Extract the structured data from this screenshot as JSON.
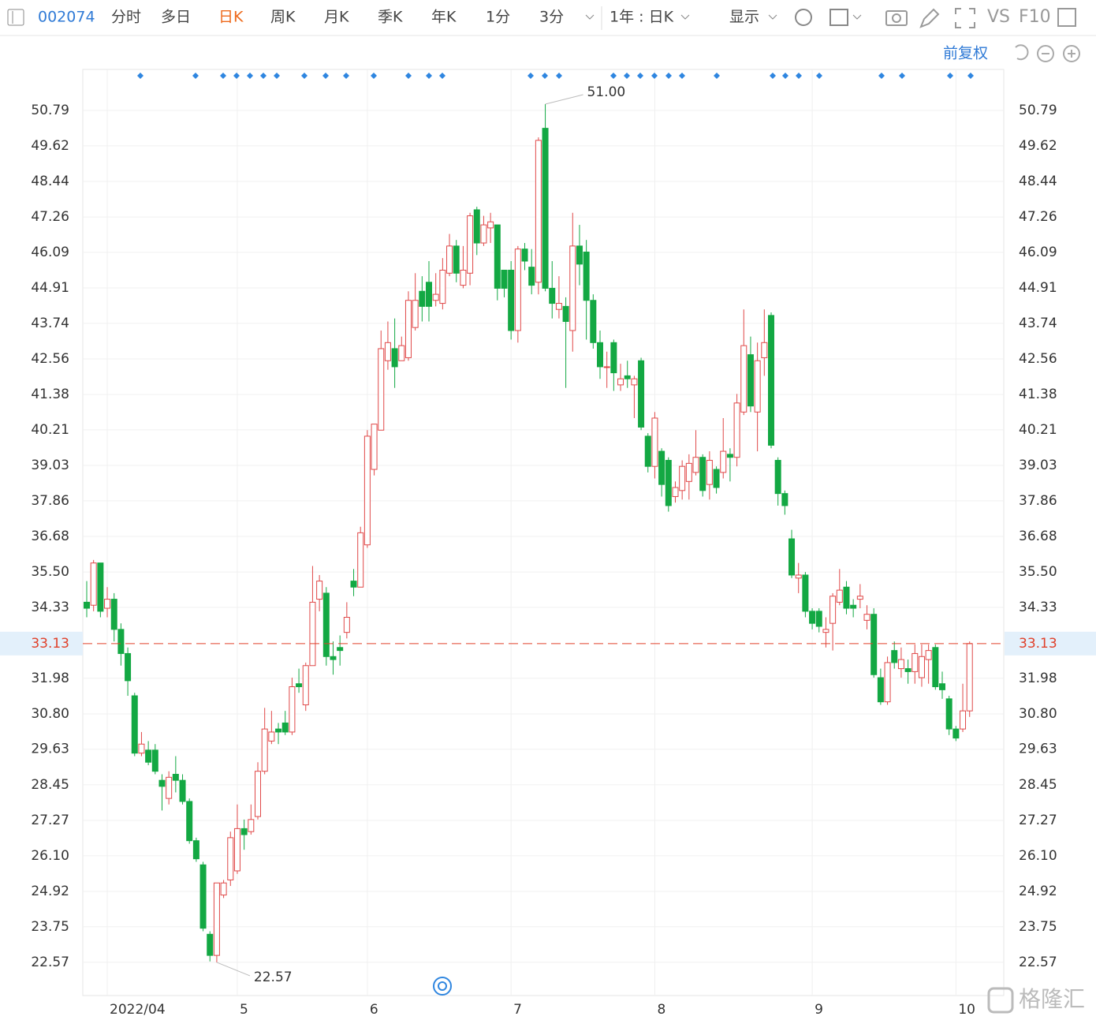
{
  "toolbar": {
    "stock_code": "002074",
    "tabs": [
      "分时",
      "多日",
      "日K",
      "周K",
      "月K",
      "季K",
      "年K",
      "1分",
      "3分"
    ],
    "range": "1年 : 日K",
    "display": "显示",
    "vs": "VS",
    "f10": "F10",
    "adjust": "前复权"
  },
  "watermark": "格隆汇",
  "chart_data": {
    "type": "candlestick",
    "categories": [
      null,
      null,
      null,
      "2022/04",
      null,
      null,
      null,
      null,
      null,
      null,
      null,
      null,
      null,
      null,
      null,
      null,
      null,
      null,
      null,
      null,
      null,
      null,
      "5",
      null,
      null,
      null,
      null,
      null,
      null,
      null,
      null,
      null,
      null,
      null,
      null,
      null,
      null,
      null,
      null,
      null,
      null,
      "6",
      null,
      null,
      null,
      null,
      null,
      null,
      null,
      null,
      null,
      null,
      null,
      null,
      null,
      null,
      null,
      null,
      null,
      null,
      null,
      null,
      "7",
      null,
      null,
      null,
      null,
      null,
      null,
      null,
      null,
      null,
      null,
      null,
      null,
      null,
      null,
      null,
      null,
      null,
      null,
      null,
      null,
      "8",
      null,
      null,
      null,
      null,
      null,
      null,
      null,
      null,
      null,
      null,
      null,
      null,
      null,
      null,
      null,
      null,
      null,
      null,
      null,
      null,
      null,
      null,
      "9",
      null,
      null,
      null,
      null,
      null,
      null,
      null,
      null,
      null,
      null,
      null,
      null,
      null,
      null,
      null,
      null,
      null,
      null,
      null,
      null,
      "10",
      null,
      null
    ],
    "open": [
      34.5,
      34.4,
      35.8,
      34.3,
      34.6,
      33.6,
      32.8,
      31.4,
      29.5,
      29.6,
      29.6,
      28.6,
      28.0,
      28.8,
      28.6,
      27.9,
      26.6,
      25.8,
      23.5,
      22.8,
      24.8,
      25.3,
      25.6,
      27.0,
      26.9,
      27.4,
      28.9,
      29.9,
      30.3,
      30.5,
      30.2,
      31.8,
      31.1,
      32.4,
      34.6,
      34.8,
      32.7,
      33.0,
      33.5,
      35.2,
      35.0,
      36.4,
      38.9,
      40.2,
      42.5,
      42.9,
      42.5,
      42.6,
      43.6,
      44.8,
      45.1,
      44.5,
      44.4,
      45.4,
      46.3,
      45.0,
      45.4,
      47.5,
      46.4,
      46.9,
      47.0,
      45.5,
      45.5,
      43.5,
      46.2,
      45.6,
      45.1,
      50.2,
      44.9,
      44.2,
      44.3,
      43.5,
      46.3,
      46.1,
      44.5,
      43.1,
      42.3,
      43.1,
      41.7,
      42.0,
      41.7,
      42.5,
      40.0,
      39.0,
      39.5,
      39.2,
      38.0,
      38.2,
      38.5,
      38.8,
      39.3,
      38.4,
      38.9,
      38.8,
      39.4,
      39.3,
      40.8,
      42.7,
      40.8,
      42.6,
      44.0,
      39.2,
      38.1,
      36.6,
      35.3,
      35.4,
      34.2,
      34.2,
      33.5,
      33.8,
      34.5,
      35.0,
      34.4,
      34.6,
      33.9,
      34.1,
      32.0,
      31.2,
      32.9,
      32.3,
      32.3,
      32.2,
      32.0,
      32.6,
      33.0,
      31.8,
      31.3,
      30.3,
      30.3,
      30.9
    ],
    "high": [
      35.2,
      35.9,
      35.8,
      35.0,
      34.8,
      33.8,
      33.0,
      31.5,
      30.2,
      29.9,
      29.8,
      28.8,
      28.9,
      29.4,
      28.8,
      28.0,
      26.7,
      25.9,
      23.6,
      25.2,
      25.3,
      26.9,
      27.8,
      27.3,
      27.8,
      29.2,
      31.0,
      30.9,
      30.5,
      30.9,
      32.0,
      32.3,
      32.5,
      35.7,
      35.4,
      35.0,
      33.2,
      33.4,
      34.5,
      35.6,
      37.0,
      40.2,
      40.4,
      43.5,
      43.8,
      43.9,
      43.3,
      44.8,
      45.4,
      45.3,
      45.8,
      45.4,
      45.9,
      46.7,
      46.5,
      46.3,
      47.4,
      47.6,
      47.3,
      47.4,
      47.0,
      45.5,
      45.8,
      46.3,
      46.4,
      46.2,
      49.9,
      51.0,
      45.8,
      45.3,
      44.6,
      47.4,
      47.0,
      46.5,
      44.7,
      43.5,
      42.8,
      43.2,
      42.4,
      42.5,
      42.0,
      42.6,
      40.1,
      40.8,
      39.6,
      39.3,
      38.5,
      39.2,
      39.4,
      40.2,
      39.4,
      39.5,
      39.0,
      40.6,
      39.6,
      41.4,
      44.2,
      43.3,
      43.1,
      44.2,
      44.1,
      39.3,
      38.2,
      36.9,
      35.8,
      35.5,
      34.3,
      34.3,
      34.0,
      34.8,
      35.6,
      35.2,
      34.6,
      35.1,
      34.4,
      34.3,
      32.3,
      32.7,
      33.2,
      33.0,
      32.6,
      33.1,
      33.1,
      33.1,
      33.1,
      32.2,
      31.4,
      30.4,
      31.8,
      33.2
    ],
    "low": [
      34.0,
      34.2,
      34.0,
      34.0,
      33.2,
      32.4,
      31.4,
      29.4,
      29.4,
      29.1,
      28.8,
      27.6,
      27.8,
      28.2,
      27.8,
      26.5,
      25.9,
      23.6,
      22.6,
      22.57,
      24.7,
      25.1,
      25.5,
      26.3,
      26.8,
      27.3,
      28.8,
      29.8,
      29.8,
      30.1,
      30.1,
      31.5,
      30.9,
      32.4,
      34.2,
      32.4,
      32.1,
      32.4,
      33.3,
      34.7,
      35.0,
      36.3,
      38.7,
      40.2,
      42.2,
      41.6,
      42.5,
      42.5,
      43.5,
      43.8,
      43.8,
      44.3,
      44.2,
      45.3,
      45.1,
      44.9,
      45.0,
      46.0,
      46.3,
      46.4,
      44.5,
      44.6,
      43.2,
      43.1,
      45.5,
      44.7,
      44.7,
      44.8,
      43.9,
      43.9,
      41.6,
      42.8,
      45.0,
      43.2,
      42.9,
      41.9,
      41.6,
      41.5,
      41.5,
      41.6,
      40.6,
      40.2,
      38.8,
      38.6,
      38.0,
      37.5,
      37.8,
      37.9,
      37.9,
      38.7,
      38.0,
      37.9,
      38.1,
      38.6,
      38.5,
      39.0,
      40.7,
      40.8,
      39.5,
      42.0,
      39.6,
      37.7,
      37.4,
      35.3,
      34.8,
      34.0,
      33.6,
      33.5,
      33.0,
      32.9,
      34.4,
      34.1,
      34.0,
      34.3,
      33.6,
      32.0,
      31.1,
      31.1,
      32.3,
      32.0,
      31.8,
      31.8,
      31.7,
      31.8,
      31.6,
      31.3,
      30.1,
      29.9,
      30.2,
      30.7
    ],
    "close": [
      34.3,
      35.8,
      34.2,
      34.6,
      33.6,
      32.8,
      31.9,
      29.5,
      29.8,
      29.2,
      28.9,
      28.4,
      28.7,
      28.6,
      27.9,
      26.6,
      26.0,
      23.7,
      22.8,
      25.2,
      25.2,
      26.7,
      27.0,
      26.8,
      27.3,
      28.9,
      30.3,
      30.2,
      30.2,
      30.2,
      31.7,
      31.7,
      32.4,
      34.5,
      35.2,
      32.7,
      32.6,
      32.9,
      34.0,
      35.0,
      36.8,
      40.0,
      40.4,
      42.9,
      43.1,
      42.3,
      43.0,
      44.5,
      44.5,
      44.3,
      44.3,
      44.7,
      45.5,
      46.3,
      45.4,
      45.5,
      47.3,
      46.4,
      47.0,
      47.1,
      44.9,
      44.9,
      43.5,
      46.2,
      45.8,
      45.0,
      49.8,
      44.9,
      44.4,
      44.4,
      43.8,
      46.3,
      45.7,
      44.5,
      43.1,
      42.3,
      42.3,
      42.1,
      41.9,
      41.9,
      41.9,
      40.3,
      39.0,
      40.6,
      38.4,
      37.7,
      38.3,
      39.0,
      39.1,
      39.3,
      38.2,
      39.2,
      38.3,
      39.5,
      39.3,
      41.1,
      43.0,
      41.0,
      42.5,
      43.1,
      39.7,
      38.1,
      37.7,
      35.4,
      35.4,
      34.2,
      33.8,
      33.7,
      33.6,
      34.7,
      34.9,
      34.3,
      34.3,
      34.7,
      34.1,
      32.1,
      31.2,
      32.5,
      32.5,
      32.6,
      32.2,
      32.8,
      32.7,
      32.9,
      31.7,
      31.6,
      30.3,
      30.0,
      30.9,
      33.13
    ],
    "up_color": "#e04848",
    "down_color": "#13a843",
    "ylim": [
      21.47,
      52.15
    ],
    "yticks": [
      22.57,
      23.75,
      24.92,
      {
        "value": 26.1,
        "label": "26.10"
      },
      27.27,
      28.45,
      29.63,
      {
        "value": 30.8,
        "label": "30.80"
      },
      31.98,
      34.33,
      {
        "value": 35.5,
        "label": "35.50"
      },
      36.68,
      37.86,
      39.03,
      40.21,
      41.38,
      42.56,
      43.74,
      44.91,
      46.09,
      47.26,
      48.44,
      49.62,
      50.79
    ],
    "grid": true,
    "last_price": 33.13,
    "last_price_color": "#e0402a",
    "high_label": {
      "value": 51,
      "label": "51.00"
    },
    "low_label": 22.57
  }
}
